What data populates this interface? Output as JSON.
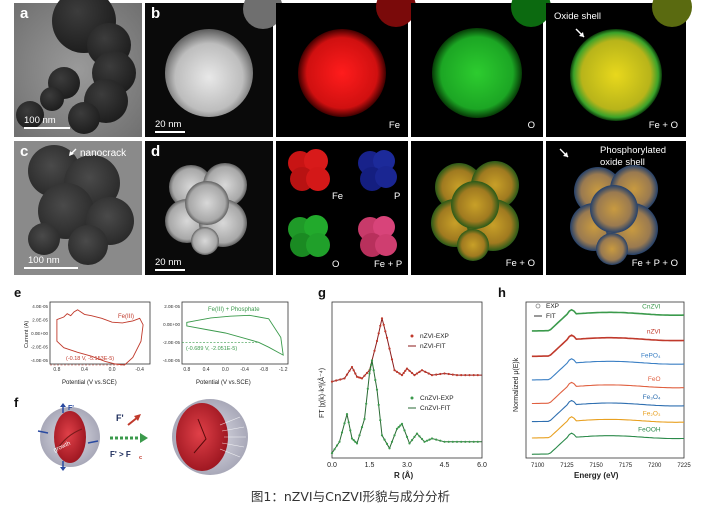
{
  "panels": {
    "a": {
      "label": "a",
      "scale": "100 nm"
    },
    "b": {
      "label": "b",
      "scale": "20 nm",
      "maps": [
        "Fe",
        "O",
        "Fe + O"
      ],
      "annotation": "Oxide shell"
    },
    "c": {
      "label": "c",
      "scale": "100 nm",
      "annotation": "nanocrack"
    },
    "d": {
      "label": "d",
      "scale": "20 nm",
      "quad": [
        "Fe",
        "P",
        "O",
        "Fe + P"
      ],
      "maps": [
        "Fe + O",
        "Fe + P + O"
      ],
      "annotation_line1": "Phosphorylated",
      "annotation_line2": "oxide shell"
    },
    "e": {
      "label": "e"
    },
    "f": {
      "label": "f"
    },
    "g": {
      "label": "g"
    },
    "h": {
      "label": "h"
    }
  },
  "caption": "图1：nZVI与CnZVI形貌与成分分析",
  "colors": {
    "fe": "#e0141b",
    "o": "#1faa2a",
    "p": "#1a2fa0",
    "red_curve": "#c0392b",
    "green_curve": "#3b9a4c"
  },
  "chart_data": [
    {
      "type": "line",
      "panel": "e-left",
      "title": "Fe(III)",
      "xlabel": "Potential (V vs.SCE)",
      "ylabel": "Current (A)",
      "ytick_labels": [
        "4.0E-05",
        "2.0E-05",
        "0.0E+00",
        "-2.0E-05",
        "-4.0E-05"
      ],
      "xtick_labels": [
        "0.8",
        "0.4",
        "0.0",
        "-0.4"
      ],
      "xlim": [
        0.9,
        -0.55
      ],
      "ylim": [
        -5e-05,
        4.5e-05
      ],
      "annotation": "(-0.18 V, -5.153E-5)",
      "series": [
        {
          "name": "Fe(III)",
          "x": [
            0.8,
            0.7,
            0.5,
            0.3,
            0.1,
            -0.05,
            -0.18,
            -0.3,
            -0.42,
            -0.45,
            -0.4,
            -0.3,
            -0.15,
            0.0,
            0.15,
            0.3,
            0.4,
            0.5,
            0.55,
            0.6,
            0.65,
            0.7,
            0.8
          ],
          "y": [
            -1.5e-05,
            -2.5e-05,
            -3.2e-05,
            -3.8e-05,
            -4.6e-05,
            -5e-05,
            -5.153e-05,
            -4e-05,
            -1.5e-05,
            1e-05,
            2e-05,
            1.6e-05,
            1.3e-05,
            1.4e-05,
            2e-05,
            2.4e-05,
            2.6e-05,
            3.3e-05,
            3e-05,
            2.4e-05,
            2.7e-05,
            2.2e-05,
            1.8e-05
          ]
        }
      ]
    },
    {
      "type": "line",
      "panel": "e-right",
      "title": "Fe(III) + Phosphate",
      "xlabel": "Potential (V vs.SCE)",
      "ylabel": "",
      "ytick_labels": [
        "2.0E-05",
        "0.0E+00",
        "-2.0E-05",
        "-4.0E-05"
      ],
      "xtick_labels": [
        "0.8",
        "0.4",
        "0.0",
        "-0.4",
        "-0.8",
        "-1.2"
      ],
      "xlim": [
        0.9,
        -1.3
      ],
      "ylim": [
        -4.5e-05,
        2.5e-05
      ],
      "annotation": "(-0.689 V, -2.051E-5)",
      "series": [
        {
          "name": "Fe(III) + Phosphate",
          "x": [
            0.8,
            0.4,
            0.0,
            -0.4,
            -0.689,
            -0.9,
            -1.1,
            -1.2,
            -1.15,
            -0.9,
            -0.5,
            -0.1,
            0.3,
            0.6,
            0.8
          ],
          "y": [
            -2e-06,
            -6e-06,
            -1e-05,
            -1.6e-05,
            -2.051e-05,
            -2.6e-05,
            -3.2e-05,
            -3.5e-05,
            -1.5e-05,
            6e-06,
            1e-05,
            9e-06,
            7e-06,
            4e-06,
            2e-06
          ]
        }
      ]
    },
    {
      "type": "line",
      "panel": "g",
      "xlabel": "R (Å)",
      "ylabel": "FT |χ(k)·k³|(Å⁻⁴)",
      "xtick_labels": [
        "0.0",
        "1.5",
        "3.0",
        "4.5",
        "6.0"
      ],
      "xlim": [
        0,
        6
      ],
      "legend_top": [
        "nZVI-EXP",
        "nZVI-FIT"
      ],
      "legend_bottom": [
        "CnZVI-EXP",
        "CnZVI-FIT"
      ],
      "series": [
        {
          "name": "nZVI",
          "x": [
            0.0,
            0.5,
            0.8,
            1.0,
            1.2,
            1.5,
            1.8,
            2.0,
            2.2,
            2.5,
            2.8,
            3.0,
            3.3,
            3.6,
            4.0,
            4.5,
            5.0,
            5.5,
            6.0
          ],
          "y": [
            2.35,
            2.45,
            2.8,
            2.5,
            2.45,
            2.7,
            3.6,
            4.3,
            3.7,
            2.7,
            2.55,
            2.75,
            2.55,
            2.7,
            2.55,
            2.6,
            2.55,
            2.55,
            2.55
          ]
        },
        {
          "name": "CnZVI",
          "x": [
            0.0,
            0.3,
            0.6,
            0.8,
            1.0,
            1.3,
            1.5,
            1.6,
            1.8,
            2.0,
            2.3,
            2.6,
            2.8,
            3.1,
            3.4,
            3.7,
            4.0,
            4.5,
            5.0,
            5.5,
            6.0
          ],
          "y": [
            0.15,
            0.5,
            1.35,
            0.6,
            0.45,
            1.2,
            2.6,
            3.0,
            2.1,
            0.7,
            0.3,
            0.9,
            1.05,
            0.45,
            0.75,
            0.5,
            0.6,
            0.5,
            0.5,
            0.5,
            0.5
          ]
        }
      ]
    },
    {
      "type": "line",
      "panel": "h",
      "xlabel": "Energy (eV)",
      "ylabel": "Normalized μ(E)k",
      "xtick_labels": [
        "7100",
        "7125",
        "7150",
        "7175",
        "7200",
        "7225"
      ],
      "xlim": [
        7090,
        7225
      ],
      "legend": [
        "EXP",
        "FIT"
      ],
      "series": [
        {
          "name": "CnZVI",
          "color": "#3b9a4c",
          "offset": 7.0
        },
        {
          "name": "nZVI",
          "color": "#c0392b",
          "offset": 5.6
        },
        {
          "name": "FePO₄",
          "color": "#3a7fc4",
          "offset": 4.3
        },
        {
          "name": "FeO",
          "color": "#e06040",
          "offset": 3.0
        },
        {
          "name": "Fe₃O₄",
          "color": "#2f6fb0",
          "offset": 2.0
        },
        {
          "name": "Fe₂O₃",
          "color": "#e8a020",
          "offset": 1.1
        },
        {
          "name": "FeOOH",
          "color": "#2b8a4a",
          "offset": 0.2
        }
      ]
    }
  ]
}
